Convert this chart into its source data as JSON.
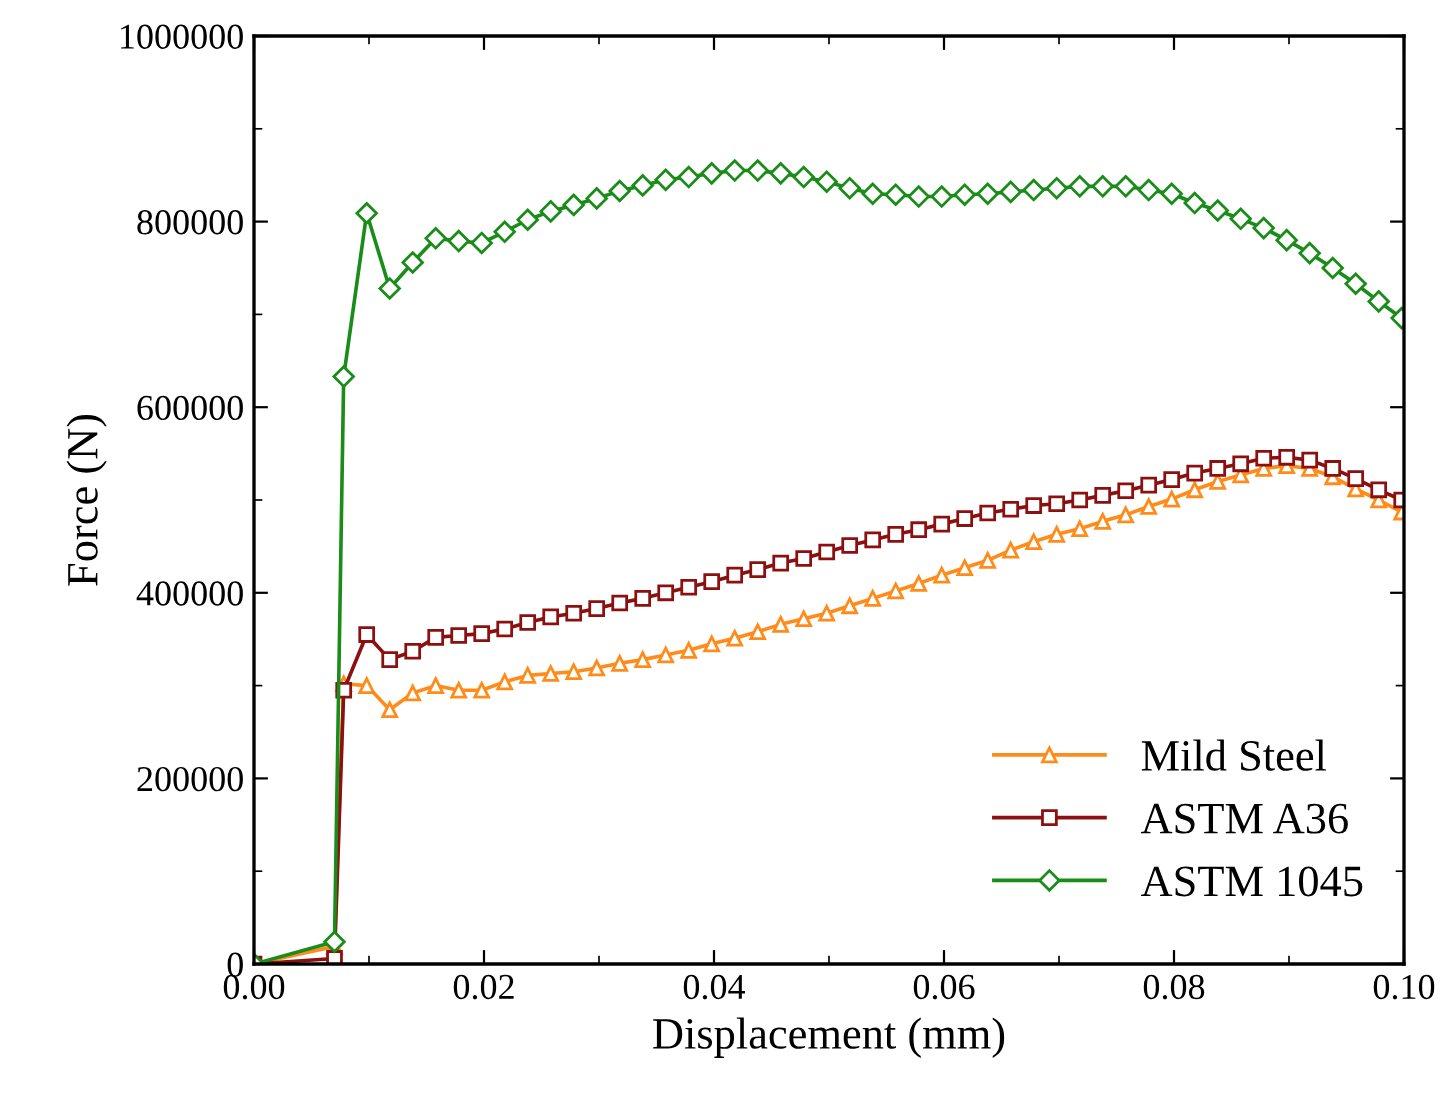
{
  "chart_data": {
    "type": "line",
    "xlabel": "Displacement (mm)",
    "ylabel": "Force (N)",
    "x": [
      0,
      0.007,
      0.0078,
      0.0098,
      0.0118,
      0.0138,
      0.0158,
      0.0178,
      0.0198,
      0.0218,
      0.0238,
      0.0258,
      0.0278,
      0.0298,
      0.0318,
      0.0338,
      0.0358,
      0.0378,
      0.0398,
      0.0418,
      0.0438,
      0.0458,
      0.0478,
      0.0498,
      0.0518,
      0.0538,
      0.0558,
      0.0578,
      0.0598,
      0.0618,
      0.0638,
      0.0658,
      0.0678,
      0.0698,
      0.0718,
      0.0738,
      0.0758,
      0.0778,
      0.0798,
      0.0818,
      0.0838,
      0.0858,
      0.0878,
      0.0898,
      0.0918,
      0.0938,
      0.0958,
      0.0978,
      0.0998
    ],
    "series": [
      {
        "name": "Mild Steel",
        "color": "#ff8c1a",
        "marker": "triangle",
        "values": [
          0,
          19000,
          302000,
          300000,
          274000,
          292000,
          300000,
          295000,
          295000,
          304000,
          311000,
          313000,
          315000,
          319000,
          324000,
          328000,
          333000,
          338000,
          345000,
          351000,
          358000,
          366000,
          372000,
          378000,
          386000,
          394000,
          402000,
          410000,
          419000,
          427000,
          435000,
          446000,
          455000,
          463000,
          469000,
          477000,
          484000,
          493000,
          501000,
          511000,
          520000,
          527000,
          534000,
          537000,
          534000,
          525000,
          512000,
          500000,
          487000
        ]
      },
      {
        "name": "ASTM A36",
        "color": "#8b1010",
        "marker": "square",
        "values": [
          0,
          6000,
          295000,
          355000,
          328000,
          337000,
          352000,
          354000,
          356000,
          361000,
          368000,
          374000,
          378000,
          383000,
          389000,
          394000,
          400000,
          406000,
          412000,
          419000,
          425000,
          432000,
          437000,
          444000,
          451000,
          457000,
          463000,
          468000,
          474000,
          480000,
          486000,
          490000,
          494000,
          496000,
          500000,
          505000,
          510000,
          516000,
          522000,
          529000,
          534000,
          539000,
          545000,
          546000,
          543000,
          534000,
          523000,
          511000,
          500000
        ]
      },
      {
        "name": "ASTM 1045",
        "color": "#1a8c1a",
        "marker": "diamond",
        "values": [
          0,
          24000,
          633000,
          809000,
          728000,
          756000,
          782000,
          779000,
          777000,
          789000,
          802000,
          811000,
          818000,
          825000,
          833000,
          839000,
          845000,
          848000,
          852000,
          855000,
          855000,
          852000,
          848000,
          843000,
          836000,
          830000,
          829000,
          827000,
          827000,
          829000,
          830000,
          832000,
          834000,
          836000,
          838000,
          838000,
          838000,
          834000,
          830000,
          820000,
          812000,
          803000,
          793000,
          780000,
          766000,
          750000,
          733000,
          714000,
          696000
        ]
      }
    ],
    "xlim": [
      0,
      0.1
    ],
    "xticks": [
      {
        "value": 0,
        "label": "0.00"
      },
      {
        "value": 0.02,
        "label": "0.02"
      },
      {
        "value": 0.04,
        "label": "0.04"
      },
      {
        "value": 0.06,
        "label": "0.06"
      },
      {
        "value": 0.08,
        "label": "0.08"
      },
      {
        "value": 0.1,
        "label": "0.10"
      }
    ],
    "ylim": [
      0,
      1000000
    ],
    "yticks": [
      0,
      200000,
      400000,
      600000,
      800000,
      1000000
    ],
    "grid": false,
    "legend": "bottom right",
    "line_style": "solid"
  }
}
